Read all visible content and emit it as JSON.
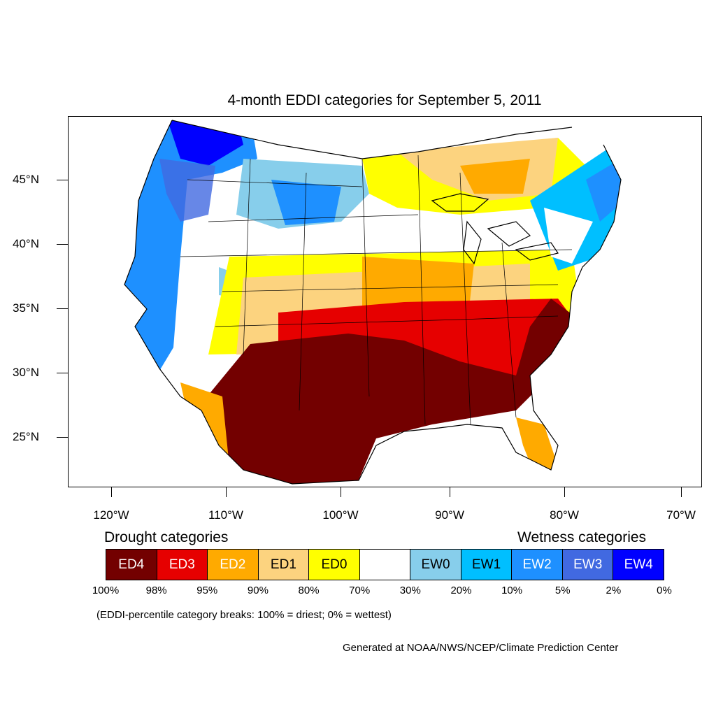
{
  "title": "4-month EDDI categories for September 5, 2011",
  "map": {
    "projection": "Lambert conformal",
    "region": "Contiguous United States",
    "latitude_labels": [
      "45°N",
      "40°N",
      "35°N",
      "30°N",
      "25°N"
    ],
    "longitude_labels": [
      "120°W",
      "110°W",
      "100°W",
      "90°W",
      "80°W",
      "70°W"
    ],
    "regions_shown": [
      {
        "area": "Pacific Northwest / Washington",
        "category": "EW4"
      },
      {
        "area": "Pacific coast (California, Oregon)",
        "category": "EW2"
      },
      {
        "area": "Northern Rockies / Montana",
        "category": "EW2"
      },
      {
        "area": "Great Basin",
        "category": "EW0"
      },
      {
        "area": "Northern Plains",
        "category": "ED0"
      },
      {
        "area": "Upper Midwest / Great Lakes",
        "category": "ED1"
      },
      {
        "area": "Ohio Valley",
        "category": "ED0"
      },
      {
        "area": "Central Plains",
        "category": "ED2"
      },
      {
        "area": "Southern Plains / Texas / Oklahoma",
        "category": "ED4"
      },
      {
        "area": "Gulf Coast / Lower Mississippi",
        "category": "ED4"
      },
      {
        "area": "Southeast / Carolinas",
        "category": "ED4"
      },
      {
        "area": "Florida",
        "category": "ED2"
      },
      {
        "area": "New England / Northeast",
        "category": "EW1"
      }
    ]
  },
  "legend": {
    "drought_heading": "Drought categories",
    "wetness_heading": "Wetness categories",
    "categories": [
      {
        "label": "ED4",
        "color": "#730000",
        "text_color": "#ffffff"
      },
      {
        "label": "ED3",
        "color": "#e60000",
        "text_color": "#ffffff"
      },
      {
        "label": "ED2",
        "color": "#ffaa00",
        "text_color": "#ffffff"
      },
      {
        "label": "ED1",
        "color": "#fcd37f",
        "text_color": "#000000"
      },
      {
        "label": "ED0",
        "color": "#ffff00",
        "text_color": "#000000"
      },
      {
        "label": "",
        "color": "#ffffff",
        "text_color": "#000000"
      },
      {
        "label": "EW0",
        "color": "#87ceeb",
        "text_color": "#000000"
      },
      {
        "label": "EW1",
        "color": "#00bfff",
        "text_color": "#000000"
      },
      {
        "label": "EW2",
        "color": "#1e90ff",
        "text_color": "#ffffff"
      },
      {
        "label": "EW3",
        "color": "#4169e1",
        "text_color": "#ffffff"
      },
      {
        "label": "EW4",
        "color": "#0000ff",
        "text_color": "#ffffff"
      }
    ],
    "percentile_breaks": [
      "100%",
      "98%",
      "95%",
      "90%",
      "80%",
      "70%",
      "30%",
      "20%",
      "10%",
      "5%",
      "2%",
      "0%"
    ],
    "note": "(EDDI-percentile category breaks: 100% = driest; 0% = wettest)"
  },
  "credit": "Generated at NOAA/NWS/NCEP/Climate Prediction Center"
}
